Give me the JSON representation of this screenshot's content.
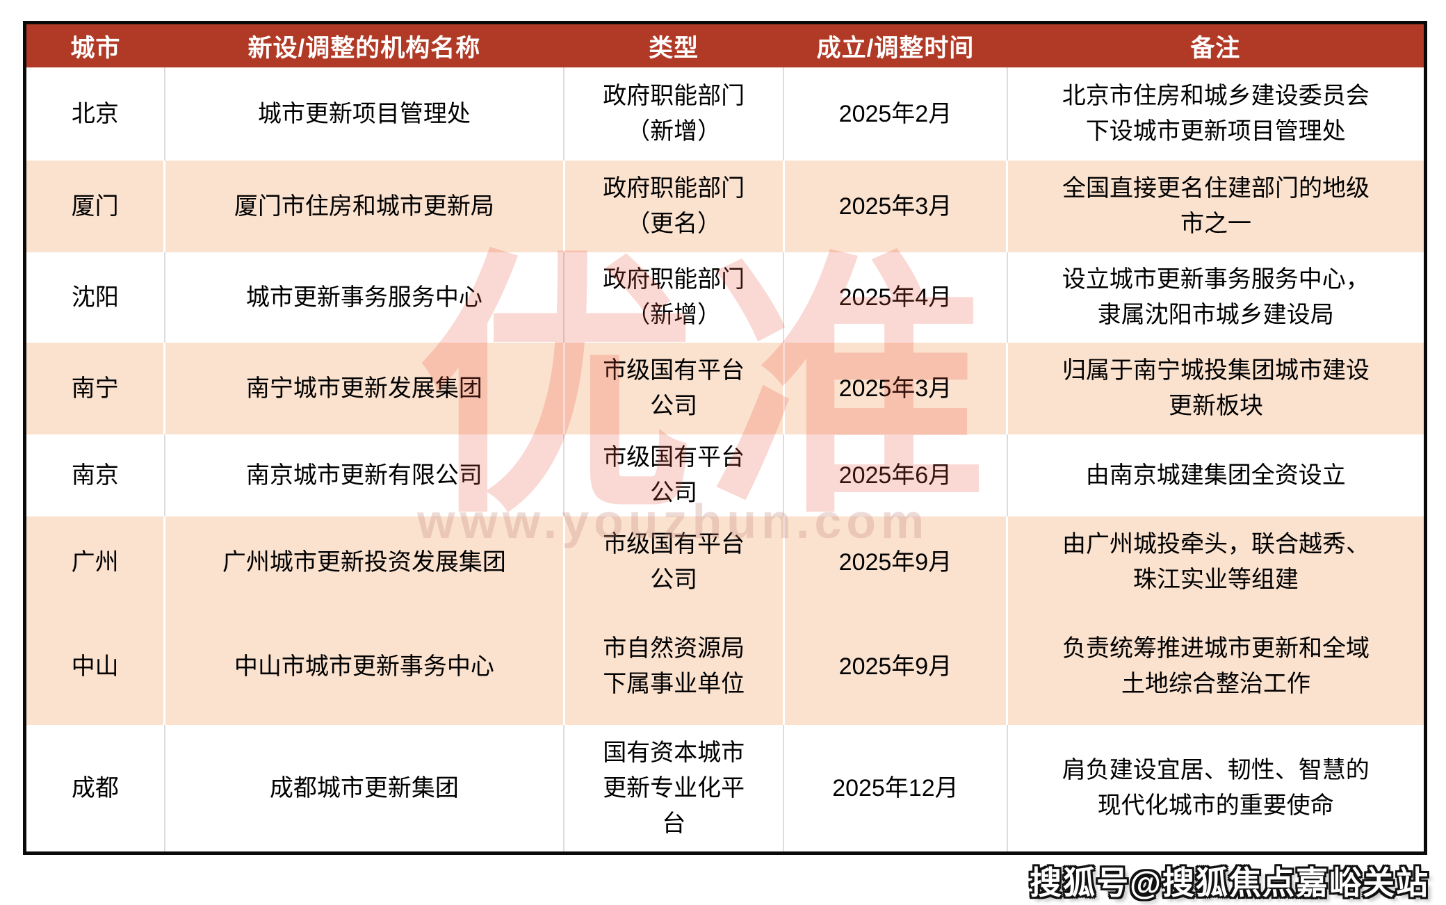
{
  "table": {
    "headers": {
      "city": "城市",
      "name": "新设/调整的机构名称",
      "type": "类型",
      "time": "成立/调整时间",
      "remark": "备注"
    },
    "rows": [
      {
        "city": "北京",
        "name": "城市更新项目管理处",
        "type": "政府职能部门\n（新增）",
        "time": "2025年2月",
        "remark": "北京市住房和城乡建设委员会\n下设城市更新项目管理处"
      },
      {
        "city": "厦门",
        "name": "厦门市住房和城市更新局",
        "type": "政府职能部门\n（更名）",
        "time": "2025年3月",
        "remark": "全国直接更名住建部门的地级\n市之一"
      },
      {
        "city": "沈阳",
        "name": "城市更新事务服务中心",
        "type": "政府职能部门\n（新增）",
        "time": "2025年4月",
        "remark": "设立城市更新事务服务中心，\n隶属沈阳市城乡建设局"
      },
      {
        "city": "南宁",
        "name": "南宁城市更新发展集团",
        "type": "市级国有平台\n公司",
        "time": "2025年3月",
        "remark": "归属于南宁城投集团城市建设\n更新板块"
      },
      {
        "city": "南京",
        "name": "南京城市更新有限公司",
        "type": "市级国有平台\n公司",
        "time": "2025年6月",
        "remark": "由南京城建集团全资设立"
      },
      {
        "city": "广州",
        "name": "广州城市更新投资发展集团",
        "type": "市级国有平台\n公司",
        "time": "2025年9月",
        "remark": "由广州城投牵头，联合越秀、\n珠江实业等组建"
      },
      {
        "city": "中山",
        "name": "中山市城市更新事务中心",
        "type": "市自然资源局\n下属事业单位",
        "time": "2025年9月",
        "remark": "负责统筹推进城市更新和全域\n土地综合整治工作"
      },
      {
        "city": "成都",
        "name": "成都城市更新集团",
        "type": "国有资本城市\n更新专业化平\n台",
        "time": "2025年12月",
        "remark": "肩负建设宜居、韧性、智慧的\n现代化城市的重要使命"
      }
    ]
  },
  "watermarks": {
    "center_glyphs": "优准",
    "center_url": "www.youzhun.com",
    "bottom_right": "搜狐号@搜狐焦点嘉峪关站"
  },
  "colors": {
    "header_bg": "#b13a26",
    "row_alt_bg": "#fbe2cf",
    "row_bg": "#ffffff",
    "outer_border": "#0a0a0a",
    "grid_gray": "#dcdcdc",
    "watermark_red": "#e74c35"
  }
}
